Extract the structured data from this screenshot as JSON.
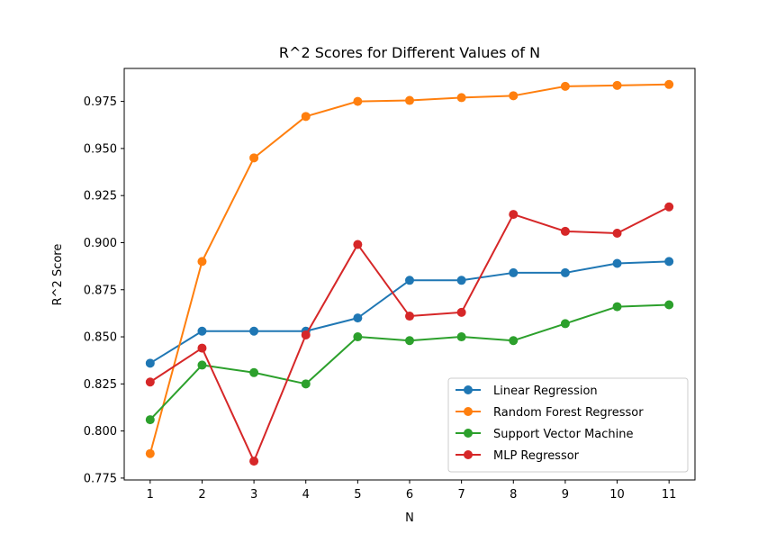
{
  "chart_data": {
    "type": "line",
    "title": "R^2 Scores for Different Values of N",
    "xlabel": "N",
    "ylabel": "R^2 Score",
    "x": [
      1,
      2,
      3,
      4,
      5,
      6,
      7,
      8,
      9,
      10,
      11
    ],
    "xticks": [
      "1",
      "2",
      "3",
      "4",
      "5",
      "6",
      "7",
      "8",
      "9",
      "10",
      "11"
    ],
    "yticks": [
      "0.775",
      "0.800",
      "0.825",
      "0.850",
      "0.875",
      "0.900",
      "0.925",
      "0.950",
      "0.975"
    ],
    "ylim": [
      0.774,
      0.9925
    ],
    "xlim": [
      0.5,
      11.5
    ],
    "grid": false,
    "legend_position": "lower-right",
    "series": [
      {
        "name": "Linear Regression",
        "color": "#1f77b4",
        "values": [
          0.836,
          0.853,
          0.853,
          0.853,
          0.86,
          0.88,
          0.88,
          0.884,
          0.884,
          0.889,
          0.89
        ]
      },
      {
        "name": "Random Forest Regressor",
        "color": "#ff7f0e",
        "values": [
          0.788,
          0.89,
          0.945,
          0.967,
          0.975,
          0.9755,
          0.977,
          0.978,
          0.983,
          0.9835,
          0.984
        ]
      },
      {
        "name": "Support Vector Machine",
        "color": "#2ca02c",
        "values": [
          0.806,
          0.835,
          0.831,
          0.825,
          0.85,
          0.848,
          0.85,
          0.848,
          0.857,
          0.866,
          0.867
        ]
      },
      {
        "name": "MLP Regressor",
        "color": "#d62728",
        "values": [
          0.826,
          0.844,
          0.784,
          0.851,
          0.899,
          0.861,
          0.863,
          0.915,
          0.906,
          0.905,
          0.919
        ]
      }
    ]
  }
}
